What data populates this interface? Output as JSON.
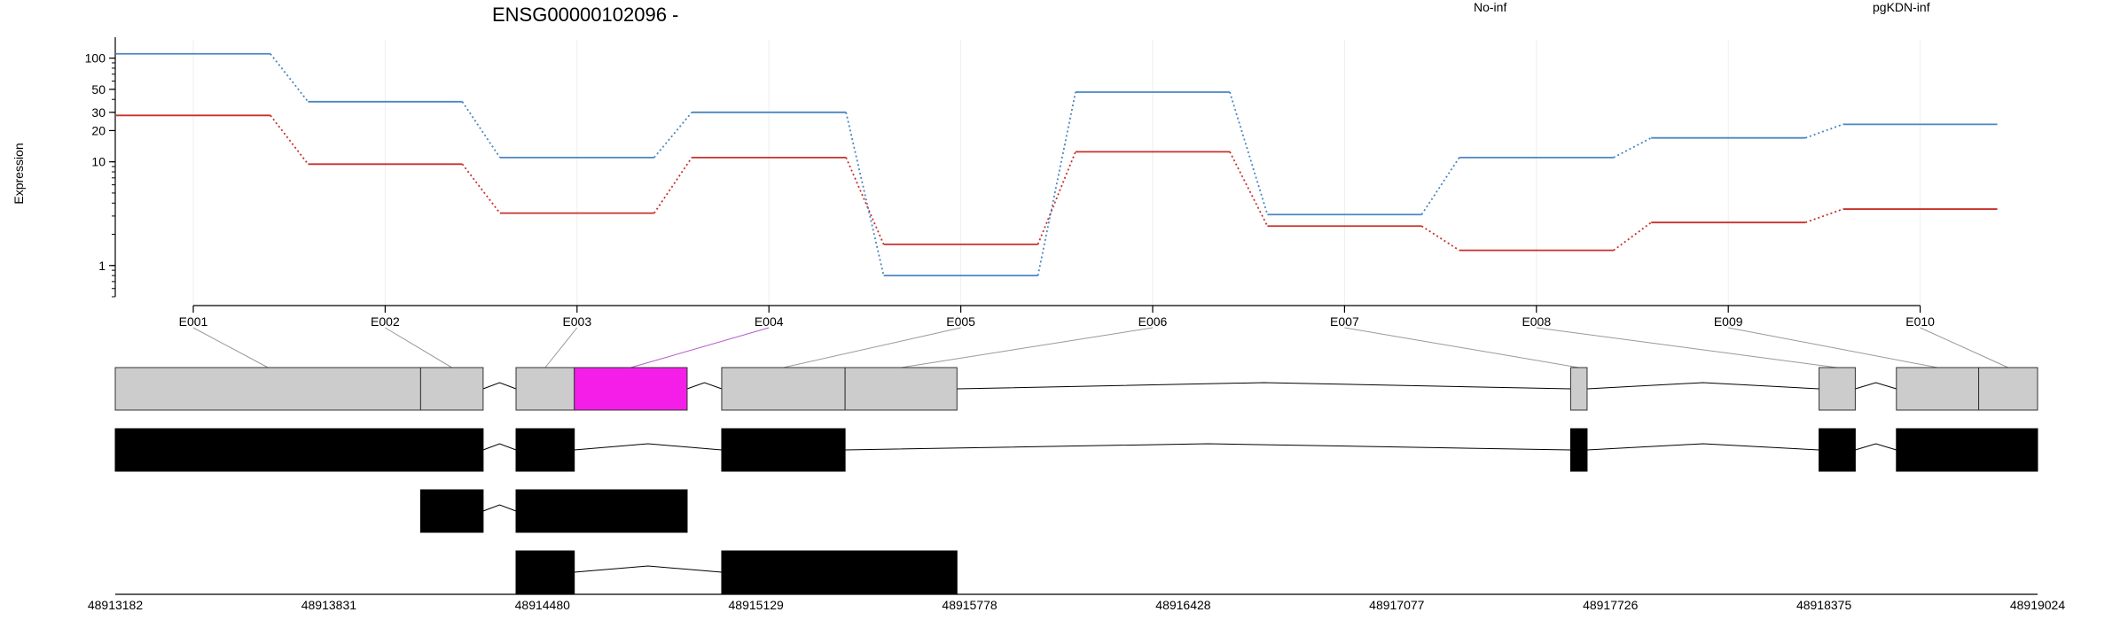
{
  "chart_data": {
    "type": "line",
    "title": "ENSG00000102096 -",
    "ylabel": "Expression",
    "xlabel": "",
    "y_scale": "log",
    "ylim": [
      0.5,
      150
    ],
    "grid": "vertical-light",
    "legend_placement": "top",
    "categories": [
      "E001",
      "E002",
      "E003",
      "E004",
      "E005",
      "E006",
      "E007",
      "E008",
      "E009",
      "E010"
    ],
    "y_ticks": [
      "1",
      "10",
      "20",
      "30",
      "50",
      "100"
    ],
    "series": [
      {
        "name": "No-inf",
        "color": "#c8302c",
        "values": [
          28,
          9.5,
          3.2,
          11,
          1.6,
          12.5,
          2.4,
          1.4,
          2.6,
          3.5
        ]
      },
      {
        "name": "pgKDN-inf",
        "color": "#4a86c0",
        "values": [
          110,
          38,
          11,
          30,
          0.8,
          47,
          3.1,
          11,
          17,
          23
        ]
      }
    ],
    "genomic_axis": {
      "start": 48913182,
      "end": 48919024,
      "tick_labels": [
        "48913182",
        "48913831",
        "48914480",
        "48915129",
        "48915778",
        "48916428",
        "48917077",
        "48917726",
        "48918375",
        "48919024"
      ]
    },
    "exons": [
      {
        "id": "E001",
        "start": 48913182,
        "end": 48914110
      },
      {
        "id": "E002",
        "start": 48914110,
        "end": 48914300
      },
      {
        "id": "E003",
        "start": 48914400,
        "end": 48914577
      },
      {
        "id": "E004",
        "start": 48914577,
        "end": 48914920,
        "highlighted": true
      },
      {
        "id": "E005",
        "start": 48915025,
        "end": 48915400
      },
      {
        "id": "E006",
        "start": 48915400,
        "end": 48915740
      },
      {
        "id": "E007",
        "start": 48917605,
        "end": 48917655
      },
      {
        "id": "E008",
        "start": 48918360,
        "end": 48918470
      },
      {
        "id": "E009",
        "start": 48918595,
        "end": 48918845
      },
      {
        "id": "E010",
        "start": 48918845,
        "end": 48919024
      }
    ],
    "transcripts": [
      [
        [
          48913182,
          48914300
        ],
        [
          48914400,
          48914577
        ],
        [
          48915025,
          48915400
        ],
        [
          48917605,
          48917655
        ],
        [
          48918360,
          48918470
        ],
        [
          48918595,
          48919024
        ]
      ],
      [
        [
          48914110,
          48914300
        ],
        [
          48914400,
          48914920
        ]
      ],
      [
        [
          48914400,
          48914577
        ],
        [
          48915025,
          48915740
        ]
      ]
    ],
    "colors": {
      "exon_fill": "#cccccc",
      "highlight_fill": "#f51ee8",
      "transcript_fill": "#000000",
      "highlight_link": "#b45ac8"
    }
  }
}
